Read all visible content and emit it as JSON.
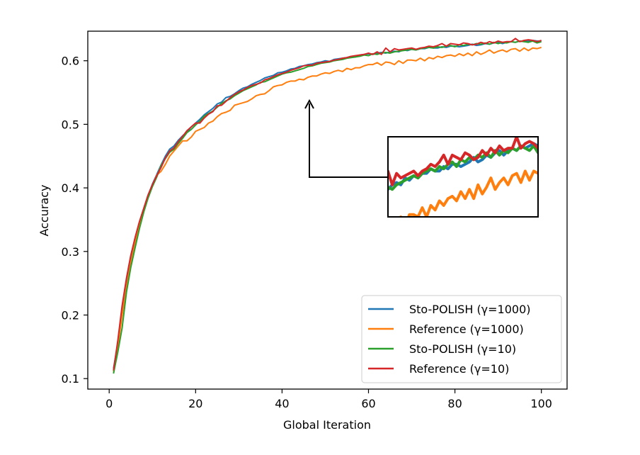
{
  "chart_data": {
    "type": "line",
    "title": "",
    "xlabel": "Global Iteration",
    "ylabel": "Accuracy",
    "xlim": [
      -4.95,
      105.95
    ],
    "ylim": [
      0.0835,
      0.6465
    ],
    "xticks": [
      0,
      20,
      40,
      60,
      80,
      100
    ],
    "yticks": [
      0.1,
      0.2,
      0.3,
      0.4,
      0.5,
      0.6
    ],
    "xtick_labels": [
      "0",
      "20",
      "40",
      "60",
      "80",
      "100"
    ],
    "ytick_labels": [
      "0.1",
      "0.2",
      "0.3",
      "0.4",
      "0.5",
      "0.6"
    ],
    "grid": false,
    "legend_position": "lower right",
    "inset": {
      "x_range": [
        64,
        99
      ],
      "y_range": [
        0.6,
        0.635
      ],
      "arrow_points_to": [
        46.5,
        0.57
      ]
    },
    "series": [
      {
        "name": "Sto-POLISH (γ=1000)",
        "color": "#1f77b4",
        "x": [
          1,
          2,
          3,
          4,
          5,
          6,
          7,
          8,
          9,
          10,
          11,
          12,
          13,
          14,
          15,
          16,
          17,
          18,
          19,
          20,
          21,
          22,
          23,
          24,
          25,
          26,
          27,
          28,
          29,
          30,
          31,
          32,
          33,
          34,
          35,
          36,
          37,
          38,
          39,
          40,
          41,
          42,
          43,
          44,
          45,
          46,
          47,
          48,
          49,
          50,
          51,
          52,
          53,
          54,
          55,
          56,
          57,
          58,
          59,
          60,
          61,
          62,
          63,
          64,
          65,
          66,
          67,
          68,
          69,
          70,
          71,
          72,
          73,
          74,
          75,
          76,
          77,
          78,
          79,
          80,
          81,
          82,
          83,
          84,
          85,
          86,
          87,
          88,
          89,
          90,
          91,
          92,
          93,
          94,
          95,
          96,
          97,
          98,
          99,
          100
        ],
        "values": [
          0.116,
          0.155,
          0.207,
          0.25,
          0.287,
          0.317,
          0.343,
          0.367,
          0.388,
          0.406,
          0.421,
          0.436,
          0.45,
          0.461,
          0.466,
          0.475,
          0.482,
          0.488,
          0.496,
          0.502,
          0.508,
          0.515,
          0.52,
          0.525,
          0.532,
          0.535,
          0.542,
          0.544,
          0.548,
          0.553,
          0.557,
          0.559,
          0.563,
          0.566,
          0.569,
          0.573,
          0.575,
          0.577,
          0.581,
          0.582,
          0.584,
          0.587,
          0.588,
          0.591,
          0.592,
          0.594,
          0.595,
          0.597,
          0.598,
          0.6,
          0.599,
          0.602,
          0.603,
          0.604,
          0.605,
          0.607,
          0.606,
          0.609,
          0.61,
          0.611,
          0.61,
          0.612,
          0.613,
          0.612,
          0.614,
          0.615,
          0.614,
          0.617,
          0.616,
          0.618,
          0.617,
          0.619,
          0.619,
          0.621,
          0.62,
          0.62,
          0.622,
          0.621,
          0.623,
          0.623,
          0.622,
          0.623,
          0.624,
          0.626,
          0.624,
          0.625,
          0.627,
          0.626,
          0.628,
          0.629,
          0.627,
          0.629,
          0.63,
          0.629,
          0.631,
          0.63,
          0.631,
          0.632,
          0.631,
          0.631
        ]
      },
      {
        "name": "Reference (γ=1000)",
        "color": "#ff7f0e",
        "x": [
          1,
          2,
          3,
          4,
          5,
          6,
          7,
          8,
          9,
          10,
          11,
          12,
          13,
          14,
          15,
          16,
          17,
          18,
          19,
          20,
          21,
          22,
          23,
          24,
          25,
          26,
          27,
          28,
          29,
          30,
          31,
          32,
          33,
          34,
          35,
          36,
          37,
          38,
          39,
          40,
          41,
          42,
          43,
          44,
          45,
          46,
          47,
          48,
          49,
          50,
          51,
          52,
          53,
          54,
          55,
          56,
          57,
          58,
          59,
          60,
          61,
          62,
          63,
          64,
          65,
          66,
          67,
          68,
          69,
          70,
          71,
          72,
          73,
          74,
          75,
          76,
          77,
          78,
          79,
          80,
          81,
          82,
          83,
          84,
          85,
          86,
          87,
          88,
          89,
          90,
          91,
          92,
          93,
          94,
          95,
          96,
          97,
          98,
          99,
          100
        ],
        "values": [
          0.111,
          0.15,
          0.2,
          0.244,
          0.282,
          0.313,
          0.341,
          0.366,
          0.386,
          0.404,
          0.42,
          0.426,
          0.437,
          0.45,
          0.458,
          0.466,
          0.474,
          0.474,
          0.48,
          0.489,
          0.492,
          0.495,
          0.502,
          0.505,
          0.512,
          0.517,
          0.519,
          0.522,
          0.53,
          0.532,
          0.534,
          0.536,
          0.54,
          0.545,
          0.547,
          0.548,
          0.553,
          0.559,
          0.561,
          0.562,
          0.566,
          0.568,
          0.568,
          0.571,
          0.57,
          0.574,
          0.576,
          0.576,
          0.579,
          0.581,
          0.58,
          0.583,
          0.585,
          0.583,
          0.588,
          0.586,
          0.589,
          0.589,
          0.592,
          0.594,
          0.594,
          0.597,
          0.593,
          0.598,
          0.597,
          0.594,
          0.6,
          0.596,
          0.601,
          0.601,
          0.6,
          0.604,
          0.6,
          0.605,
          0.603,
          0.607,
          0.605,
          0.608,
          0.609,
          0.607,
          0.611,
          0.608,
          0.612,
          0.608,
          0.614,
          0.61,
          0.613,
          0.617,
          0.612,
          0.615,
          0.617,
          0.614,
          0.618,
          0.619,
          0.615,
          0.62,
          0.616,
          0.62,
          0.619,
          0.621
        ]
      },
      {
        "name": "Sto-POLISH (γ=10)",
        "color": "#2ca02c",
        "x": [
          1,
          2,
          3,
          4,
          5,
          6,
          7,
          8,
          9,
          10,
          11,
          12,
          13,
          14,
          15,
          16,
          17,
          18,
          19,
          20,
          21,
          22,
          23,
          24,
          25,
          26,
          27,
          28,
          29,
          30,
          31,
          32,
          33,
          34,
          35,
          36,
          37,
          38,
          39,
          40,
          41,
          42,
          43,
          44,
          45,
          46,
          47,
          48,
          49,
          50,
          51,
          52,
          53,
          54,
          55,
          56,
          57,
          58,
          59,
          60,
          61,
          62,
          63,
          64,
          65,
          66,
          67,
          68,
          69,
          70,
          71,
          72,
          73,
          74,
          75,
          76,
          77,
          78,
          79,
          80,
          81,
          82,
          83,
          84,
          85,
          86,
          87,
          88,
          89,
          90,
          91,
          92,
          93,
          94,
          95,
          96,
          97,
          98,
          99,
          100
        ],
        "values": [
          0.108,
          0.142,
          0.18,
          0.236,
          0.275,
          0.306,
          0.336,
          0.362,
          0.384,
          0.402,
          0.417,
          0.435,
          0.446,
          0.456,
          0.461,
          0.47,
          0.478,
          0.487,
          0.492,
          0.499,
          0.505,
          0.513,
          0.517,
          0.521,
          0.527,
          0.533,
          0.537,
          0.54,
          0.545,
          0.549,
          0.553,
          0.556,
          0.559,
          0.562,
          0.566,
          0.567,
          0.57,
          0.573,
          0.576,
          0.579,
          0.581,
          0.582,
          0.584,
          0.586,
          0.588,
          0.591,
          0.592,
          0.594,
          0.596,
          0.597,
          0.598,
          0.6,
          0.601,
          0.602,
          0.604,
          0.605,
          0.606,
          0.607,
          0.609,
          0.608,
          0.611,
          0.61,
          0.612,
          0.613,
          0.612,
          0.614,
          0.615,
          0.616,
          0.617,
          0.618,
          0.617,
          0.619,
          0.62,
          0.621,
          0.62,
          0.622,
          0.621,
          0.623,
          0.624,
          0.622,
          0.625,
          0.624,
          0.626,
          0.625,
          0.627,
          0.626,
          0.628,
          0.626,
          0.629,
          0.627,
          0.629,
          0.628,
          0.63,
          0.629,
          0.631,
          0.63,
          0.629,
          0.631,
          0.628,
          0.63
        ]
      },
      {
        "name": "Reference (γ=10)",
        "color": "#d62728",
        "x": [
          1,
          2,
          3,
          4,
          5,
          6,
          7,
          8,
          9,
          10,
          11,
          12,
          13,
          14,
          15,
          16,
          17,
          18,
          19,
          20,
          21,
          22,
          23,
          24,
          25,
          26,
          27,
          28,
          29,
          30,
          31,
          32,
          33,
          34,
          35,
          36,
          37,
          38,
          39,
          40,
          41,
          42,
          43,
          44,
          45,
          46,
          47,
          48,
          49,
          50,
          51,
          52,
          53,
          54,
          55,
          56,
          57,
          58,
          59,
          60,
          61,
          62,
          63,
          64,
          65,
          66,
          67,
          68,
          69,
          70,
          71,
          72,
          73,
          74,
          75,
          76,
          77,
          78,
          79,
          80,
          81,
          82,
          83,
          84,
          85,
          86,
          87,
          88,
          89,
          90,
          91,
          92,
          93,
          94,
          95,
          96,
          97,
          98,
          99,
          100
        ],
        "values": [
          0.113,
          0.16,
          0.215,
          0.258,
          0.294,
          0.322,
          0.347,
          0.368,
          0.389,
          0.405,
          0.419,
          0.432,
          0.447,
          0.458,
          0.463,
          0.473,
          0.481,
          0.49,
          0.496,
          0.502,
          0.502,
          0.51,
          0.516,
          0.52,
          0.529,
          0.53,
          0.536,
          0.542,
          0.547,
          0.551,
          0.554,
          0.558,
          0.561,
          0.563,
          0.565,
          0.57,
          0.572,
          0.575,
          0.578,
          0.58,
          0.582,
          0.585,
          0.587,
          0.589,
          0.592,
          0.593,
          0.593,
          0.596,
          0.597,
          0.598,
          0.599,
          0.601,
          0.602,
          0.604,
          0.605,
          0.607,
          0.608,
          0.609,
          0.61,
          0.612,
          0.61,
          0.614,
          0.61,
          0.62,
          0.614,
          0.619,
          0.617,
          0.618,
          0.619,
          0.62,
          0.618,
          0.62,
          0.621,
          0.623,
          0.622,
          0.624,
          0.627,
          0.623,
          0.627,
          0.626,
          0.625,
          0.628,
          0.627,
          0.625,
          0.626,
          0.629,
          0.627,
          0.63,
          0.628,
          0.631,
          0.629,
          0.63,
          0.63,
          0.635,
          0.63,
          0.632,
          0.633,
          0.632,
          0.63,
          0.632
        ]
      }
    ]
  }
}
